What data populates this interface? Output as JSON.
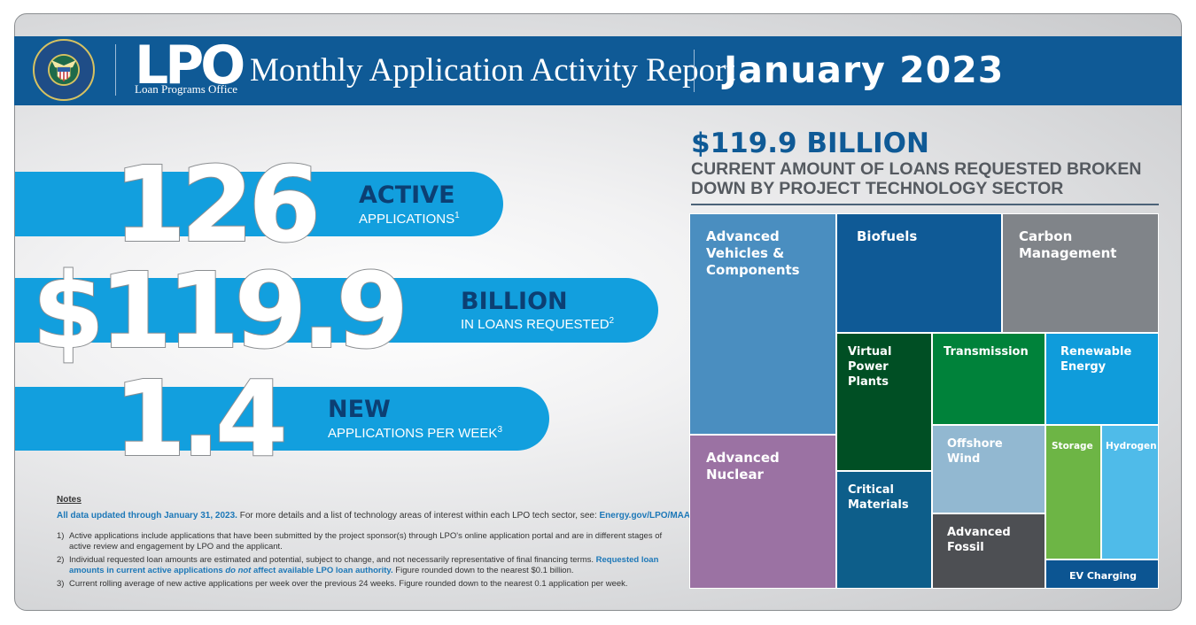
{
  "header": {
    "logo_text": "LPO",
    "logo_subtitle": "Loan Programs Office",
    "report_title": "Monthly Application Activity Report",
    "period": "January 2023",
    "colors": {
      "banner": "#0f5a96",
      "pill": "#129fde",
      "accent_dark": "#0c3f73"
    }
  },
  "stats": [
    {
      "value": "126",
      "label": "ACTIVE",
      "sub": "APPLICATIONS",
      "note": "1"
    },
    {
      "value": "$119.9",
      "label": "BILLION",
      "sub": "IN LOANS REQUESTED",
      "note": "2"
    },
    {
      "value": "1.4",
      "label": "NEW",
      "sub": "APPLICATIONS PER WEEK",
      "note": "3"
    }
  ],
  "notes": {
    "heading": "Notes",
    "lead_bold": "All data updated through January 31, 2023.",
    "lead_rest": " For more details and a list of technology areas of interest within each LPO tech sector, see: ",
    "lead_link": "Energy.gov/LPO/MAAR",
    "items": [
      {
        "num": "1)",
        "text": "Active applications include applications that have been submitted by the project sponsor(s) through LPO's online application portal and are in different stages of active review and engagement by LPO and the applicant."
      },
      {
        "num": "2)",
        "text_a": "Individual requested loan amounts are estimated and potential, subject to change, and not necessarily representative of final financing terms. ",
        "text_b": "Requested loan amounts in current active applications ",
        "text_c": "do not",
        "text_d": " affect available LPO loan authority.",
        "text_e": " Figure rounded down to the nearest $0.1 billion."
      },
      {
        "num": "3)",
        "text": "Current rolling average of new active applications per week over the previous 24 weeks. Figure rounded down to the nearest 0.1 application per week."
      }
    ]
  },
  "treemap": {
    "total": "$119.9 BILLION",
    "subtitle": "CURRENT AMOUNT OF LOANS REQUESTED BROKEN DOWN BY PROJECT TECHNOLOGY SECTOR",
    "sectors": [
      {
        "name": "Advanced Vehicles & Components",
        "color": "#4a8ec0"
      },
      {
        "name": "Advanced Nuclear",
        "color": "#9b72a3"
      },
      {
        "name": "Biofuels",
        "color": "#0f5a96"
      },
      {
        "name": "Carbon Management",
        "color": "#808489"
      },
      {
        "name": "Virtual Power Plants",
        "color": "#004f24"
      },
      {
        "name": "Transmission",
        "color": "#00823a"
      },
      {
        "name": "Renewable Energy",
        "color": "#0f9cdb"
      },
      {
        "name": "Offshore Wind",
        "color": "#92b8d1"
      },
      {
        "name": "Storage",
        "color": "#6db545"
      },
      {
        "name": "Hydrogen",
        "color": "#4fbbe9"
      },
      {
        "name": "Critical Materials",
        "color": "#0d5e8a"
      },
      {
        "name": "Advanced Fossil",
        "color": "#4d4f53"
      },
      {
        "name": "EV Charging",
        "color": "#0c5592"
      }
    ]
  }
}
